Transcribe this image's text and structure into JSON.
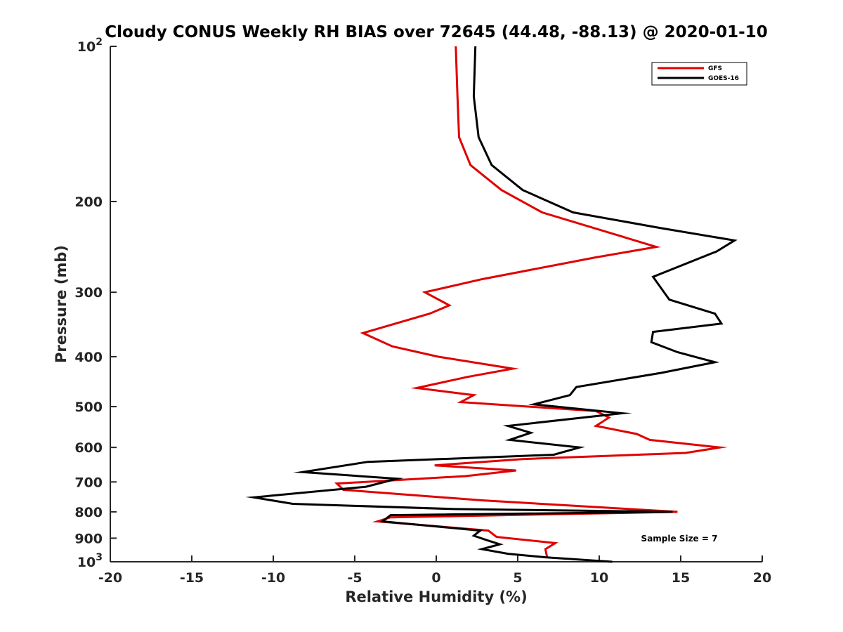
{
  "chart_data": {
    "type": "line",
    "title": "Cloudy CONUS Weekly RH BIAS over 72645 (44.48, -88.13) @ 2020-01-10",
    "xlabel": "Relative Humidity (%)",
    "ylabel": "Pressure (mb)",
    "xlim": [
      -20,
      20
    ],
    "ylim": [
      100,
      1000
    ],
    "yscale": "log",
    "y_reversed": true,
    "x_ticks": [
      -20,
      -15,
      -10,
      -5,
      0,
      5,
      10,
      15,
      20
    ],
    "x_tick_labels": [
      "-20",
      "-15",
      "-10",
      "-5",
      "0",
      "5",
      "10",
      "15",
      "20"
    ],
    "y_ticks": [
      100,
      200,
      300,
      400,
      500,
      600,
      700,
      800,
      900,
      1000
    ],
    "y_tick_labels": [
      {
        "base": "10",
        "exp": "2"
      },
      {
        "base": "200",
        "exp": ""
      },
      {
        "base": "300",
        "exp": ""
      },
      {
        "base": "400",
        "exp": ""
      },
      {
        "base": "500",
        "exp": ""
      },
      {
        "base": "600",
        "exp": ""
      },
      {
        "base": "700",
        "exp": ""
      },
      {
        "base": "800",
        "exp": ""
      },
      {
        "base": "900",
        "exp": ""
      },
      {
        "base": "10",
        "exp": "3"
      }
    ],
    "grid": false,
    "legend_position": "top-right",
    "annotation": "Sample Size = 7",
    "series": [
      {
        "name": "GFS",
        "color": "#e00000",
        "points": [
          [
            1.2,
            100
          ],
          [
            1.3,
            125
          ],
          [
            1.4,
            150
          ],
          [
            2.1,
            170
          ],
          [
            4.0,
            190
          ],
          [
            6.5,
            210
          ],
          [
            13.5,
            245
          ],
          [
            9.7,
            257
          ],
          [
            2.8,
            283
          ],
          [
            -0.7,
            300
          ],
          [
            0.8,
            318
          ],
          [
            -0.4,
            330
          ],
          [
            -4.5,
            360
          ],
          [
            -2.7,
            382
          ],
          [
            0.1,
            400
          ],
          [
            4.7,
            422
          ],
          [
            1.9,
            438
          ],
          [
            -1.2,
            460
          ],
          [
            2.3,
            475
          ],
          [
            1.5,
            490
          ],
          [
            9.8,
            510
          ],
          [
            10.6,
            525
          ],
          [
            9.8,
            545
          ],
          [
            12.3,
            565
          ],
          [
            13.1,
            580
          ],
          [
            17.4,
            600
          ],
          [
            15.3,
            615
          ],
          [
            5.3,
            632
          ],
          [
            -0.1,
            650
          ],
          [
            4.9,
            665
          ],
          [
            1.8,
            682
          ],
          [
            -6.1,
            705
          ],
          [
            -5.7,
            725
          ],
          [
            2.8,
            760
          ],
          [
            14.8,
            800
          ],
          [
            -2.8,
            820
          ],
          [
            -3.6,
            835
          ],
          [
            3.2,
            870
          ],
          [
            3.7,
            895
          ],
          [
            7.3,
            920
          ],
          [
            6.7,
            945
          ],
          [
            6.8,
            980
          ]
        ]
      },
      {
        "name": "GOES-16",
        "color": "#000000",
        "points": [
          [
            2.4,
            100
          ],
          [
            2.3,
            125
          ],
          [
            2.6,
            150
          ],
          [
            3.4,
            170
          ],
          [
            5.3,
            190
          ],
          [
            8.4,
            210
          ],
          [
            13.7,
            225
          ],
          [
            18.3,
            238
          ],
          [
            17.2,
            250
          ],
          [
            13.3,
            280
          ],
          [
            14.3,
            310
          ],
          [
            17.1,
            330
          ],
          [
            17.5,
            345
          ],
          [
            13.3,
            358
          ],
          [
            13.2,
            375
          ],
          [
            14.8,
            392
          ],
          [
            17.1,
            410
          ],
          [
            13.8,
            430
          ],
          [
            8.6,
            458
          ],
          [
            8.2,
            475
          ],
          [
            6.0,
            495
          ],
          [
            11.4,
            515
          ],
          [
            4.4,
            545
          ],
          [
            5.8,
            562
          ],
          [
            4.5,
            580
          ],
          [
            8.8,
            600
          ],
          [
            7.2,
            620
          ],
          [
            -4.2,
            640
          ],
          [
            -8.2,
            670
          ],
          [
            -2.4,
            690
          ],
          [
            -4.3,
            715
          ],
          [
            -11.2,
            750
          ],
          [
            -8.8,
            772
          ],
          [
            1.1,
            790
          ],
          [
            14.5,
            800
          ],
          [
            -2.8,
            812
          ],
          [
            -3.3,
            835
          ],
          [
            2.7,
            870
          ],
          [
            2.3,
            890
          ],
          [
            3.1,
            908
          ],
          [
            3.9,
            925
          ],
          [
            2.8,
            945
          ],
          [
            4.4,
            965
          ],
          [
            6.7,
            980
          ],
          [
            10.8,
            1000
          ]
        ]
      }
    ]
  }
}
